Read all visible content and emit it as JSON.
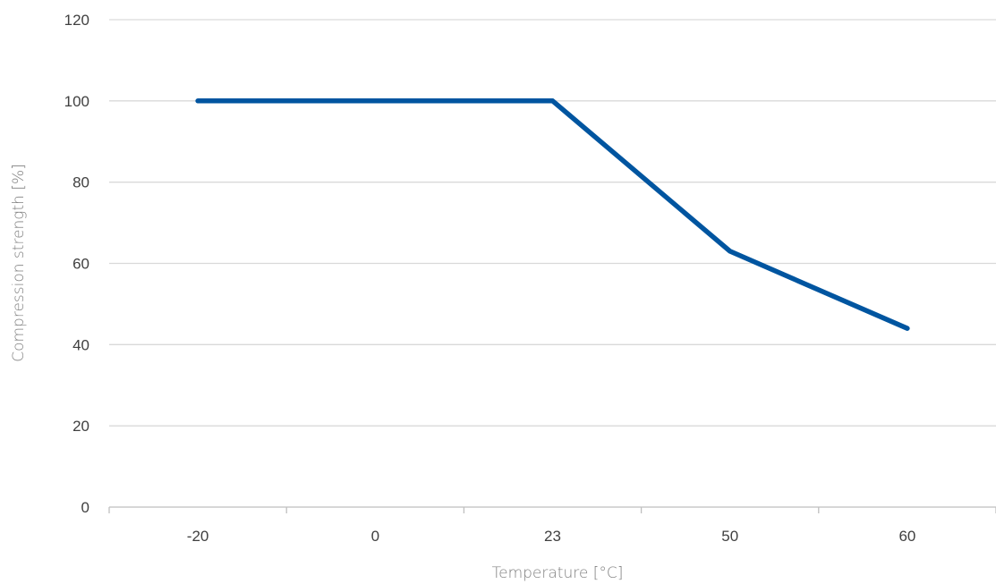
{
  "chart_data": {
    "type": "line",
    "title": "",
    "xlabel": "Temperature [°C]",
    "ylabel": "Compression strength [%]",
    "categories": [
      "-20",
      "0",
      "23",
      "50",
      "60"
    ],
    "ylim": [
      0,
      120
    ],
    "yticks": [
      0,
      20,
      40,
      60,
      80,
      100,
      120
    ],
    "grid": true,
    "series": [
      {
        "values": [
          100,
          100,
          100,
          63,
          44
        ],
        "color": "#0055a0"
      }
    ]
  }
}
